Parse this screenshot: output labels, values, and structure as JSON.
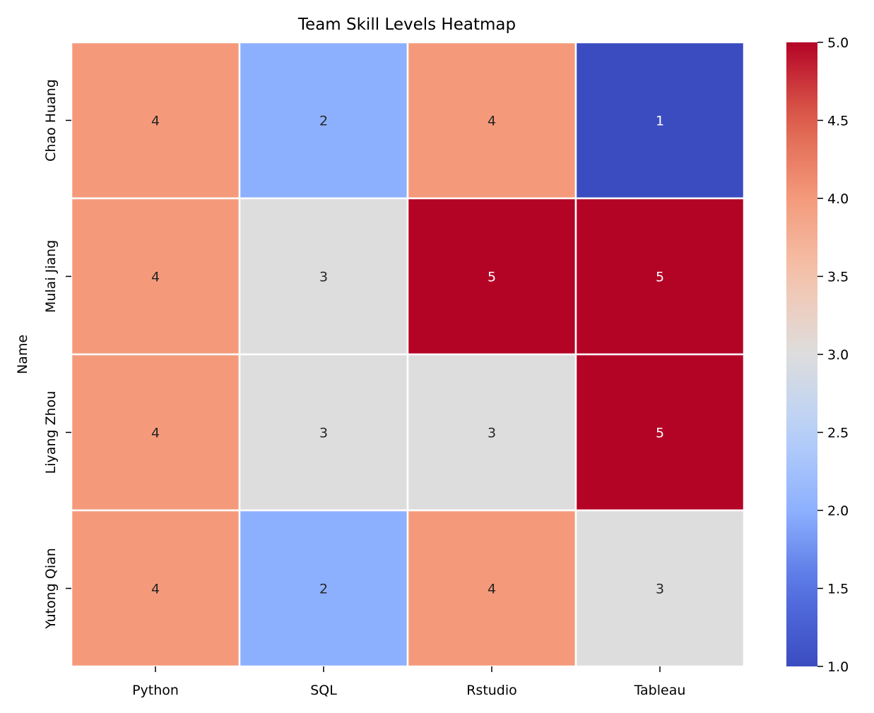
{
  "chart_data": {
    "type": "heatmap",
    "title": "Team Skill Levels Heatmap",
    "xlabel": "",
    "ylabel": "Name",
    "columns": [
      "Python",
      "SQL",
      "Rstudio",
      "Tableau"
    ],
    "rows": [
      "Chao Huang",
      "Mulai Jiang",
      "Liyang Zhou",
      "Yutong Qian"
    ],
    "values": [
      [
        4,
        2,
        4,
        1
      ],
      [
        4,
        3,
        5,
        5
      ],
      [
        4,
        3,
        3,
        5
      ],
      [
        4,
        2,
        4,
        3
      ]
    ],
    "colormap": "coolwarm",
    "vmin": 1.0,
    "vmax": 5.0,
    "colorbar_ticks": [
      "1.0",
      "1.5",
      "2.0",
      "2.5",
      "3.0",
      "3.5",
      "4.0",
      "4.5",
      "5.0"
    ],
    "colors": {
      "low": "#3b4cc0",
      "mid": "#dddddd",
      "high": "#b40426",
      "cell_border": "#ffffff",
      "label_dark": "#262626",
      "label_light": "#ffffff"
    }
  }
}
